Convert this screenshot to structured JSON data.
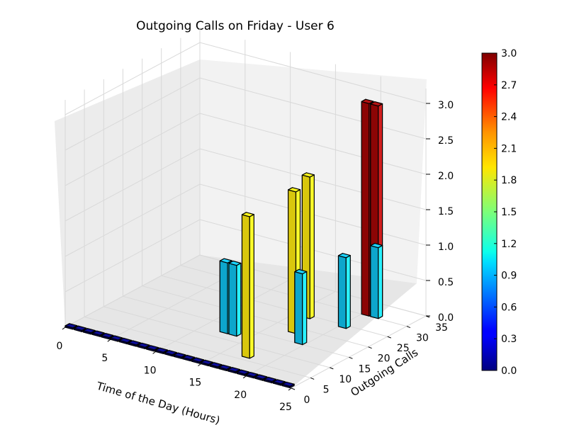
{
  "chart_data": {
    "type": "bar3d",
    "title": "Outgoing Calls on Friday - User 6",
    "xlabel": "Time of the Day (Hours)",
    "ylabel": "Outgoing Calls",
    "zlabel": "",
    "x_ticks": [
      0,
      5,
      10,
      15,
      20,
      25
    ],
    "y_ticks": [
      0,
      5,
      10,
      15,
      20,
      25,
      30,
      35
    ],
    "z_ticks": [
      "0.0",
      "0.5",
      "1.0",
      "1.5",
      "2.0",
      "2.5",
      "3.0"
    ],
    "xlim": [
      0,
      25
    ],
    "ylim": [
      0,
      35
    ],
    "zlim": [
      0,
      3
    ],
    "colormap": "jet",
    "colorbar": {
      "min": 0,
      "max": 3,
      "ticks": [
        "0.0",
        "0.3",
        "0.6",
        "0.9",
        "1.2",
        "1.5",
        "1.8",
        "2.1",
        "2.4",
        "2.7",
        "3.0"
      ]
    },
    "bars": [
      {
        "hour": 12,
        "calls": 12,
        "value": 1
      },
      {
        "hour": 13,
        "calls": 12,
        "value": 1
      },
      {
        "hour": 16,
        "calls": 24,
        "value": 2
      },
      {
        "hour": 17,
        "calls": 18,
        "value": 2
      },
      {
        "hour": 17,
        "calls": 6,
        "value": 2
      },
      {
        "hour": 20,
        "calls": 30,
        "value": 3
      },
      {
        "hour": 21,
        "calls": 30,
        "value": 3
      },
      {
        "hour": 19,
        "calls": 15,
        "value": 1
      },
      {
        "hour": 20,
        "calls": 24,
        "value": 1
      },
      {
        "hour": 21,
        "calls": 30,
        "value": 1
      }
    ],
    "zero_bars": {
      "calls": 0,
      "from_hour": 0,
      "to_hour": 24,
      "value": 0
    }
  }
}
